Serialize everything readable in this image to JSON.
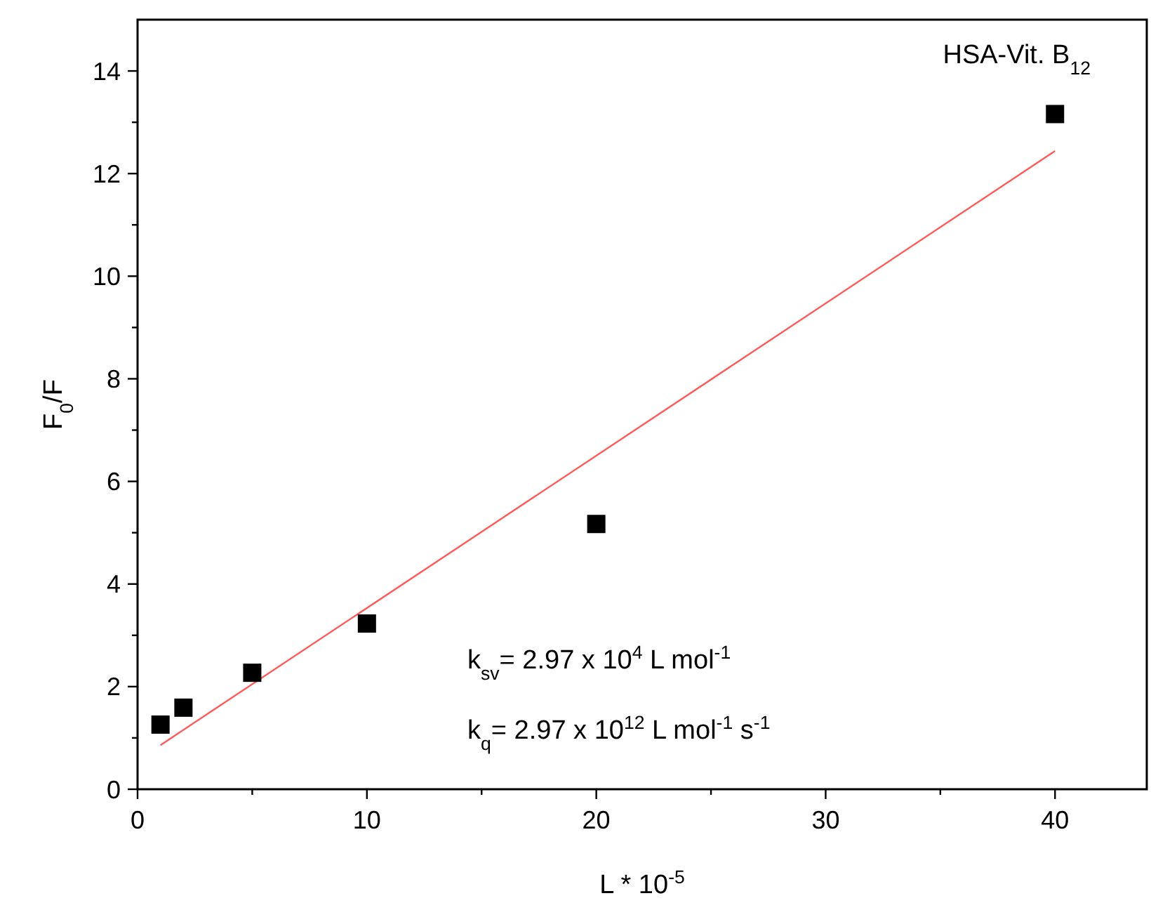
{
  "chart_data": {
    "type": "scatter",
    "xlabel": "L * 10$^{-5}$",
    "ylabel": "F$_{0}$/F",
    "series": [
      {
        "color": "#000000",
        "marker": "square",
        "x": [
          1,
          2,
          5,
          10,
          20,
          40
        ],
        "values": [
          1.26,
          1.59,
          2.27,
          3.23,
          5.17,
          13.16
        ]
      },
      {
        "type": "line",
        "color": "#ff5a5a",
        "line_style": "solid",
        "x": [
          1,
          40
        ],
        "values": [
          0.86,
          12.44
        ]
      }
    ],
    "xlim": [
      0,
      44
    ],
    "ylim": [
      0,
      15
    ],
    "xticks": [
      0,
      {
        "value": 5,
        "label": null
      },
      10,
      {
        "value": 15,
        "label": null
      },
      20,
      {
        "value": 25,
        "label": null
      },
      30,
      {
        "value": 35,
        "label": null
      },
      40
    ],
    "yticks": [
      0,
      {
        "value": 1,
        "label": null
      },
      2,
      {
        "value": 3,
        "label": null
      },
      4,
      {
        "value": 5,
        "label": null
      },
      6,
      {
        "value": 7,
        "label": null
      },
      8,
      {
        "value": 9,
        "label": null
      },
      10,
      {
        "value": 11,
        "label": null
      },
      12,
      {
        "value": 13,
        "label": null
      },
      14
    ],
    "grid": false,
    "annotations": [
      "HSA-Vit. B$_{12}$",
      "k$_{sv}$= 2.97 x 10$^{4}$ L mol$^{-1}$",
      "k$_{q}$= 2.97 x 10$^{12}$ L mol$^{-1}$ s$^{-1}$"
    ]
  }
}
